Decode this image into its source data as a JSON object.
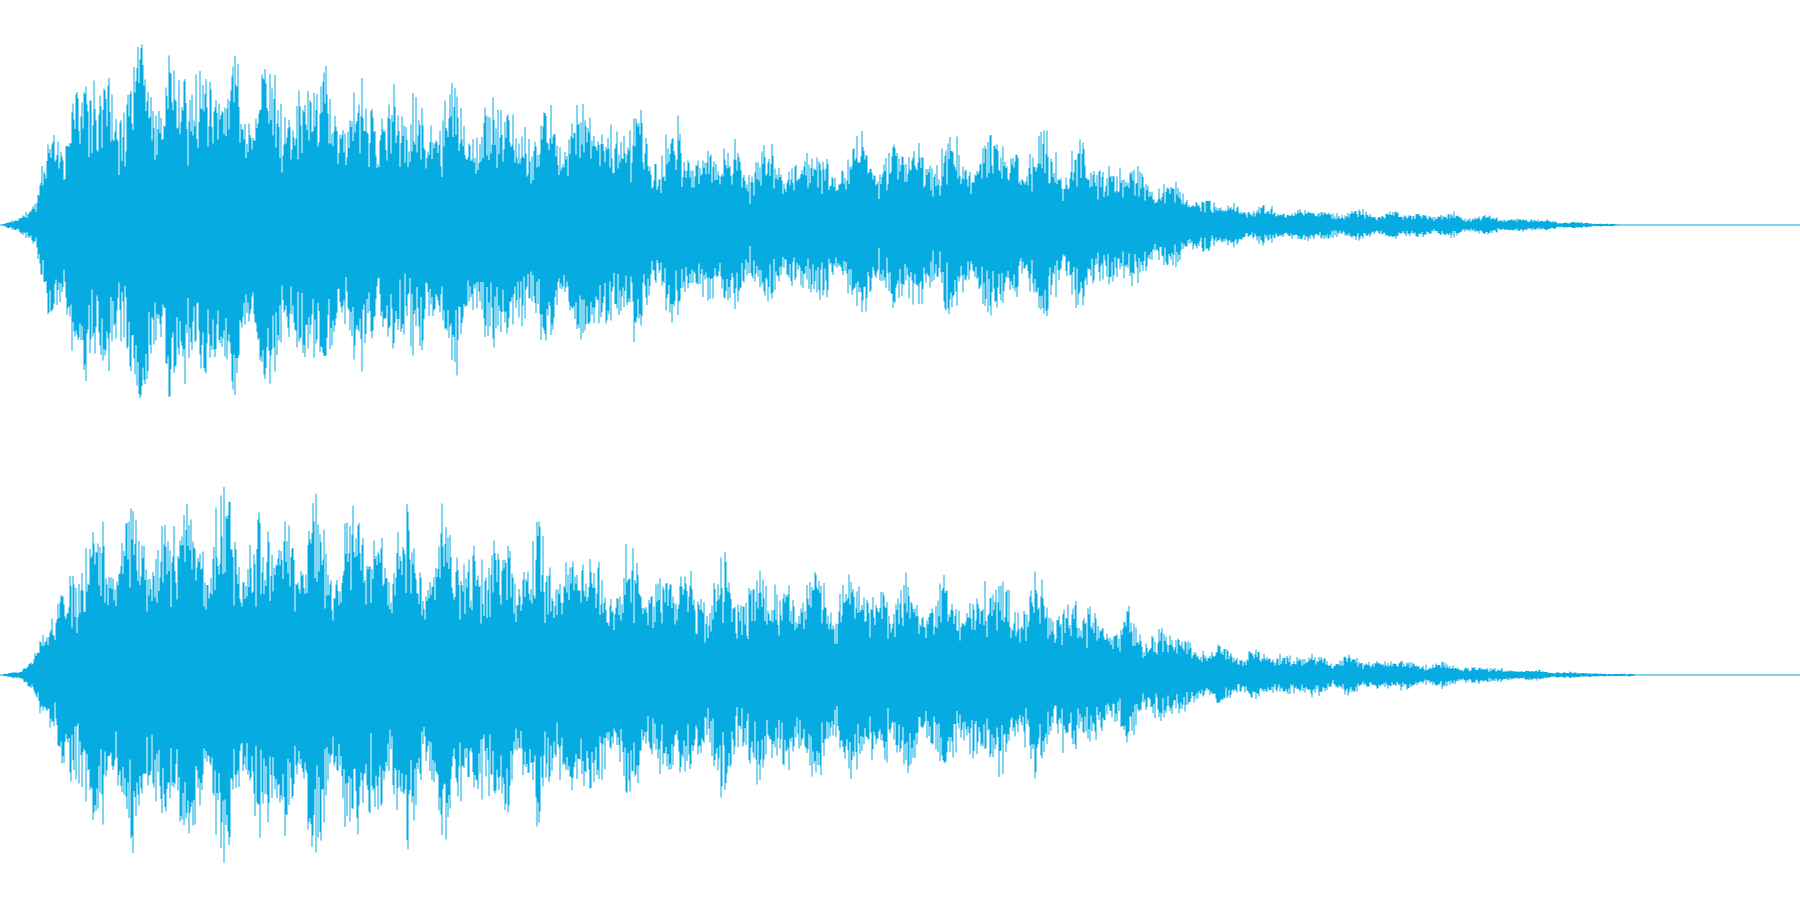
{
  "waveform": {
    "color": "#06abe2",
    "background": "#ffffff",
    "channels": [
      {
        "name": "channel-1",
        "envelope_points": [
          [
            0.0,
            0.0
          ],
          [
            0.01,
            0.04
          ],
          [
            0.02,
            0.18
          ],
          [
            0.03,
            0.58
          ],
          [
            0.04,
            0.82
          ],
          [
            0.05,
            0.92
          ],
          [
            0.07,
            0.98
          ],
          [
            0.09,
            1.0
          ],
          [
            0.11,
            0.96
          ],
          [
            0.14,
            0.92
          ],
          [
            0.17,
            0.88
          ],
          [
            0.2,
            0.82
          ],
          [
            0.23,
            0.78
          ],
          [
            0.26,
            0.74
          ],
          [
            0.29,
            0.72
          ],
          [
            0.32,
            0.68
          ],
          [
            0.35,
            0.64
          ],
          [
            0.38,
            0.5
          ],
          [
            0.41,
            0.46
          ],
          [
            0.44,
            0.42
          ],
          [
            0.47,
            0.46
          ],
          [
            0.5,
            0.48
          ],
          [
            0.53,
            0.5
          ],
          [
            0.56,
            0.52
          ],
          [
            0.59,
            0.48
          ],
          [
            0.62,
            0.38
          ],
          [
            0.65,
            0.24
          ],
          [
            0.68,
            0.12
          ],
          [
            0.71,
            0.1
          ],
          [
            0.74,
            0.09
          ],
          [
            0.77,
            0.08
          ],
          [
            0.8,
            0.07
          ],
          [
            0.83,
            0.05
          ],
          [
            0.86,
            0.03
          ],
          [
            0.88,
            0.015
          ],
          [
            0.9,
            0.005
          ],
          [
            0.91,
            0.0
          ],
          [
            1.0,
            0.0
          ]
        ]
      },
      {
        "name": "channel-2",
        "envelope_points": [
          [
            0.0,
            0.0
          ],
          [
            0.01,
            0.03
          ],
          [
            0.02,
            0.12
          ],
          [
            0.03,
            0.45
          ],
          [
            0.04,
            0.7
          ],
          [
            0.05,
            0.82
          ],
          [
            0.07,
            0.9
          ],
          [
            0.1,
            0.96
          ],
          [
            0.13,
            0.97
          ],
          [
            0.16,
            0.95
          ],
          [
            0.19,
            0.92
          ],
          [
            0.22,
            0.9
          ],
          [
            0.25,
            0.86
          ],
          [
            0.28,
            0.82
          ],
          [
            0.31,
            0.78
          ],
          [
            0.34,
            0.7
          ],
          [
            0.37,
            0.62
          ],
          [
            0.4,
            0.6
          ],
          [
            0.43,
            0.58
          ],
          [
            0.46,
            0.56
          ],
          [
            0.49,
            0.56
          ],
          [
            0.52,
            0.54
          ],
          [
            0.55,
            0.53
          ],
          [
            0.58,
            0.5
          ],
          [
            0.61,
            0.4
          ],
          [
            0.64,
            0.3
          ],
          [
            0.67,
            0.18
          ],
          [
            0.7,
            0.14
          ],
          [
            0.73,
            0.12
          ],
          [
            0.76,
            0.1
          ],
          [
            0.79,
            0.08
          ],
          [
            0.82,
            0.05
          ],
          [
            0.85,
            0.03
          ],
          [
            0.88,
            0.015
          ],
          [
            0.91,
            0.005
          ],
          [
            0.92,
            0.0
          ],
          [
            1.0,
            0.0
          ]
        ]
      }
    ]
  }
}
